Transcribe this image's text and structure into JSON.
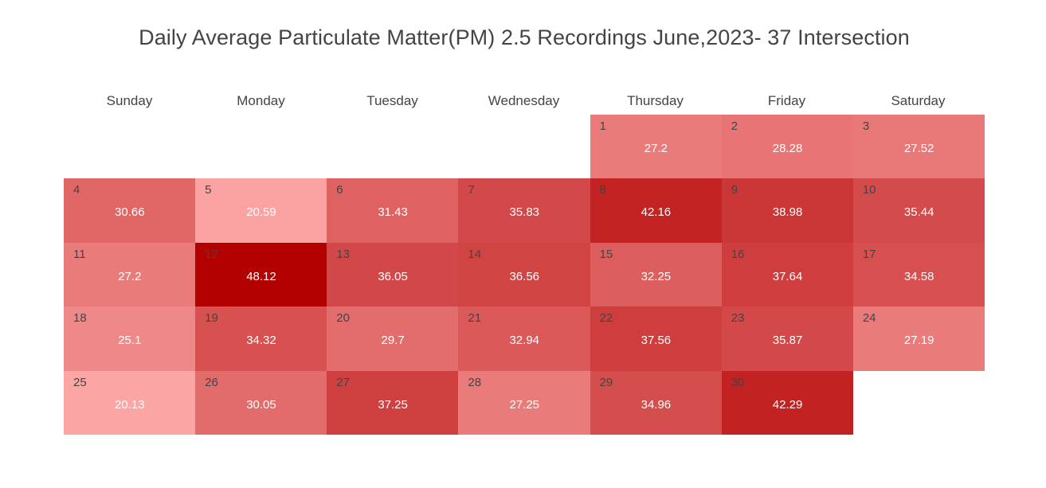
{
  "chart_data": {
    "type": "heatmap",
    "title": "Daily Average Particulate Matter(PM) 2.5 Recordings June,2023- 37 Intersection",
    "weekdays": [
      "Sunday",
      "Monday",
      "Tuesday",
      "Wednesday",
      "Thursday",
      "Friday",
      "Saturday"
    ],
    "color_scale": {
      "min_color": "#fca5a5",
      "max_color": "#b30000",
      "min": 20.13,
      "max": 48.12
    },
    "days": [
      {
        "day": 1,
        "weekday": 4,
        "week": 0,
        "value": 27.2
      },
      {
        "day": 2,
        "weekday": 5,
        "week": 0,
        "value": 28.28
      },
      {
        "day": 3,
        "weekday": 6,
        "week": 0,
        "value": 27.52
      },
      {
        "day": 4,
        "weekday": 0,
        "week": 1,
        "value": 30.66
      },
      {
        "day": 5,
        "weekday": 1,
        "week": 1,
        "value": 20.59
      },
      {
        "day": 6,
        "weekday": 2,
        "week": 1,
        "value": 31.43
      },
      {
        "day": 7,
        "weekday": 3,
        "week": 1,
        "value": 35.83
      },
      {
        "day": 8,
        "weekday": 4,
        "week": 1,
        "value": 42.16
      },
      {
        "day": 9,
        "weekday": 5,
        "week": 1,
        "value": 38.98
      },
      {
        "day": 10,
        "weekday": 6,
        "week": 1,
        "value": 35.44
      },
      {
        "day": 11,
        "weekday": 0,
        "week": 2,
        "value": 27.2
      },
      {
        "day": 12,
        "weekday": 1,
        "week": 2,
        "value": 48.12
      },
      {
        "day": 13,
        "weekday": 2,
        "week": 2,
        "value": 36.05
      },
      {
        "day": 14,
        "weekday": 3,
        "week": 2,
        "value": 36.56
      },
      {
        "day": 15,
        "weekday": 4,
        "week": 2,
        "value": 32.25
      },
      {
        "day": 16,
        "weekday": 5,
        "week": 2,
        "value": 37.64
      },
      {
        "day": 17,
        "weekday": 6,
        "week": 2,
        "value": 34.58
      },
      {
        "day": 18,
        "weekday": 0,
        "week": 3,
        "value": 25.1
      },
      {
        "day": 19,
        "weekday": 1,
        "week": 3,
        "value": 34.32
      },
      {
        "day": 20,
        "weekday": 2,
        "week": 3,
        "value": 29.7
      },
      {
        "day": 21,
        "weekday": 3,
        "week": 3,
        "value": 32.94
      },
      {
        "day": 22,
        "weekday": 4,
        "week": 3,
        "value": 37.56
      },
      {
        "day": 23,
        "weekday": 5,
        "week": 3,
        "value": 35.87
      },
      {
        "day": 24,
        "weekday": 6,
        "week": 3,
        "value": 27.19
      },
      {
        "day": 25,
        "weekday": 0,
        "week": 4,
        "value": 20.13
      },
      {
        "day": 26,
        "weekday": 1,
        "week": 4,
        "value": 30.05
      },
      {
        "day": 27,
        "weekday": 2,
        "week": 4,
        "value": 37.25
      },
      {
        "day": 28,
        "weekday": 3,
        "week": 4,
        "value": 27.25
      },
      {
        "day": 29,
        "weekday": 4,
        "week": 4,
        "value": 34.96
      },
      {
        "day": 30,
        "weekday": 5,
        "week": 4,
        "value": 42.29
      }
    ]
  }
}
